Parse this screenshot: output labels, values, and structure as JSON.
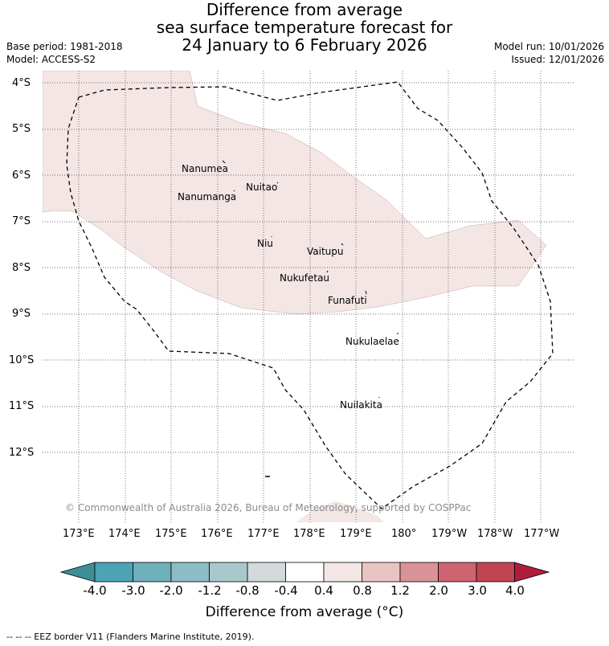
{
  "title": {
    "line1": "Difference from average",
    "line2": "sea surface temperature forecast for",
    "line3": "24 January to 6 February 2026"
  },
  "meta_left": {
    "base_period": "Base period: 1981-2018",
    "model": "Model: ACCESS-S2"
  },
  "meta_right": {
    "model_run": "Model run: 10/01/2026",
    "issued": "Issued: 12/01/2026"
  },
  "map": {
    "lat_ticks": [
      "4°S",
      "5°S",
      "6°S",
      "7°S",
      "8°S",
      "9°S",
      "10°S",
      "11°S",
      "12°S"
    ],
    "lon_ticks": [
      "173°E",
      "174°E",
      "175°E",
      "176°E",
      "177°E",
      "178°E",
      "179°E",
      "180°",
      "179°W",
      "178°W",
      "177°W"
    ],
    "islands": [
      {
        "name": "Nanumea"
      },
      {
        "name": "Nuitao"
      },
      {
        "name": "Nanumanga"
      },
      {
        "name": "Niu"
      },
      {
        "name": "Vaitupu"
      },
      {
        "name": "Nukufetau"
      },
      {
        "name": "Funafuti"
      },
      {
        "name": "Nukulaelae"
      },
      {
        "name": "Nuilakita"
      }
    ],
    "anomaly_class": "0.4 to 0.8",
    "anomaly_color": "#f3e6e5",
    "copyright": "© Commonwealth of Australia 2026, Bureau of Meteorology, supported by COSPPac"
  },
  "colorbar": {
    "ticks": [
      "-4.0",
      "-3.0",
      "-2.0",
      "-1.2",
      "-0.8",
      "-0.4",
      "0.4",
      "0.8",
      "1.2",
      "2.0",
      "3.0",
      "4.0"
    ],
    "colors": [
      "#3d8e98",
      "#4ba3b3",
      "#6eafbc",
      "#8cbcc5",
      "#a8c9cc",
      "#d3d9da",
      "#ffffff",
      "#f3e6e5",
      "#e8c5c2",
      "#d99296",
      "#cd6470",
      "#c04452",
      "#b01c3c"
    ],
    "label": "Difference from average (°C)"
  },
  "footer": {
    "eez_note": "--  --  -- EEZ border V11 (Flanders Marine Institute, 2019)."
  }
}
